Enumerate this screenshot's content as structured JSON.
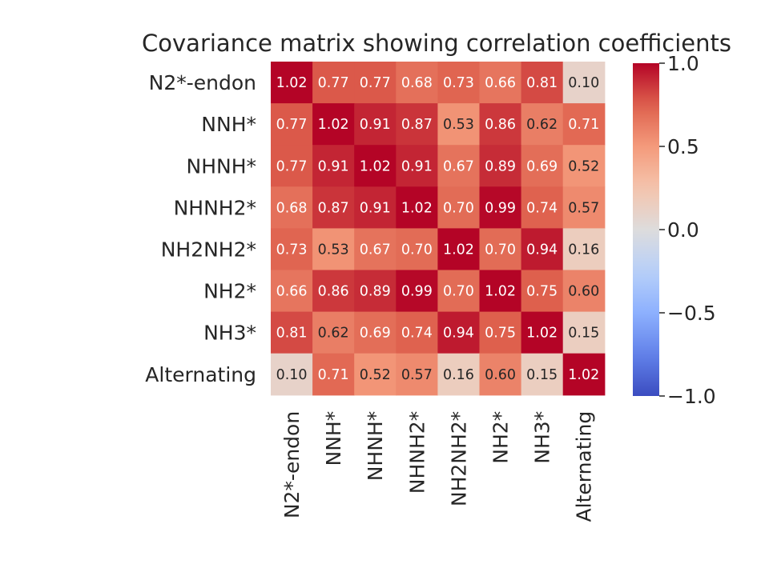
{
  "chart_data": {
    "type": "heatmap",
    "title": "Covariance matrix showing correlation coefficients",
    "row_labels": [
      "N2*-endon",
      "NNH*",
      "NHNH*",
      "NHNH2*",
      "NH2NH2*",
      "NH2*",
      "NH3*",
      "Alternating"
    ],
    "col_labels": [
      "N2*-endon",
      "NNH*",
      "NHNH*",
      "NHNH2*",
      "NH2NH2*",
      "NH2*",
      "NH3*",
      "Alternating"
    ],
    "values": [
      [
        1.02,
        0.77,
        0.77,
        0.68,
        0.73,
        0.66,
        0.81,
        0.1
      ],
      [
        0.77,
        1.02,
        0.91,
        0.87,
        0.53,
        0.86,
        0.62,
        0.71
      ],
      [
        0.77,
        0.91,
        1.02,
        0.91,
        0.67,
        0.89,
        0.69,
        0.52
      ],
      [
        0.68,
        0.87,
        0.91,
        1.02,
        0.7,
        0.99,
        0.74,
        0.57
      ],
      [
        0.73,
        0.53,
        0.67,
        0.7,
        1.02,
        0.7,
        0.94,
        0.16
      ],
      [
        0.66,
        0.86,
        0.89,
        0.99,
        0.7,
        1.02,
        0.75,
        0.6
      ],
      [
        0.81,
        0.62,
        0.69,
        0.74,
        0.94,
        0.75,
        1.02,
        0.15
      ],
      [
        0.1,
        0.71,
        0.52,
        0.57,
        0.16,
        0.6,
        0.15,
        1.02
      ]
    ],
    "vmin": -1.0,
    "vmax": 1.0,
    "colormap": "coolwarm",
    "colorbar_ticks": [
      "−1.0",
      "−0.5",
      "0.0",
      "0.5",
      "1.0"
    ],
    "colorbar_tick_values": [
      -1.0,
      -0.5,
      0.0,
      0.5,
      1.0
    ],
    "annotation_format": "2 decimals",
    "grid": false
  }
}
